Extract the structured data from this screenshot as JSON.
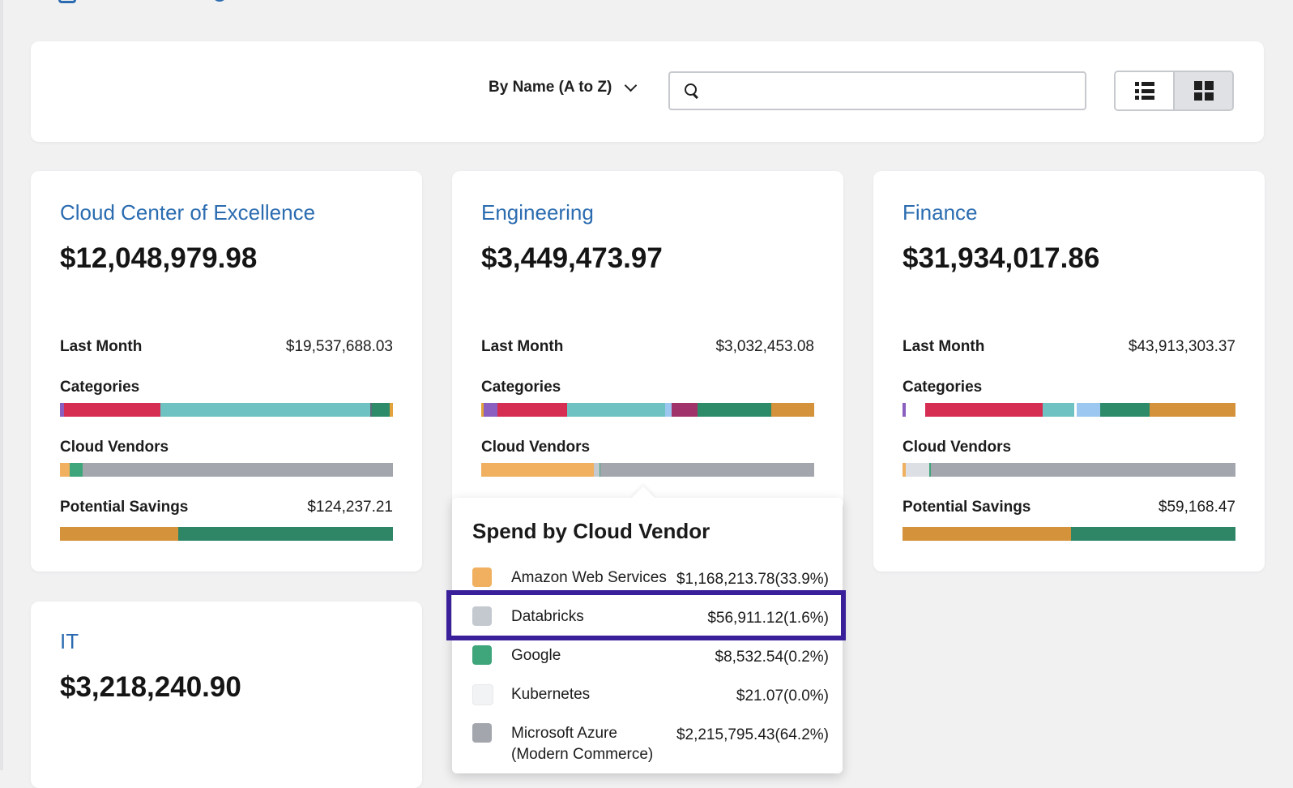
{
  "toolbar": {
    "sort_label": "By Name (A to Z)",
    "search_placeholder": "",
    "view_list_icon": "list-view-icon",
    "view_grid_icon": "grid-view-icon"
  },
  "colors": {
    "title_blue": "#2b6cb0",
    "highlight": "#3a1f9a"
  },
  "cards": [
    {
      "title": "Cloud Center of Excellence",
      "total": "$12,048,979.98",
      "last_month_label": "Last Month",
      "last_month_value": "$19,537,688.03",
      "categories_label": "Categories",
      "categories_bar": [
        {
          "color": "#8b5fbf",
          "share": 0.012
        },
        {
          "color": "#d62d53",
          "share": 0.29
        },
        {
          "color": "#6fc2c2",
          "share": 0.63
        },
        {
          "color": "#5a6b7a",
          "share": 0.004
        },
        {
          "color": "#2e8b6a",
          "share": 0.055
        },
        {
          "color": "#e3a23b",
          "share": 0.009
        }
      ],
      "vendors_label": "Cloud Vendors",
      "vendors_bar": [
        {
          "color": "#f0b060",
          "share": 0.03
        },
        {
          "color": "#3fa57a",
          "share": 0.037
        },
        {
          "color": "#a3a7ad",
          "share": 0.933
        }
      ],
      "savings_label": "Potential Savings",
      "savings_value": "$124,237.21",
      "savings_bar": [
        {
          "color": "#d4923a",
          "share": 0.355
        },
        {
          "color": "#2f8667",
          "share": 0.645
        }
      ]
    },
    {
      "title": "Engineering",
      "total": "$3,449,473.97",
      "last_month_label": "Last Month",
      "last_month_value": "$3,032,453.08",
      "categories_label": "Categories",
      "categories_bar": [
        {
          "color": "#e3a23b",
          "share": 0.008
        },
        {
          "color": "#8b5fbf",
          "share": 0.04
        },
        {
          "color": "#d62d53",
          "share": 0.21
        },
        {
          "color": "#6fc2c2",
          "share": 0.295
        },
        {
          "color": "#9cc7f0",
          "share": 0.02
        },
        {
          "color": "#a0346a",
          "share": 0.077
        },
        {
          "color": "#2e8b6a",
          "share": 0.22
        },
        {
          "color": "#d4923a",
          "share": 0.13
        }
      ],
      "vendors_label": "Cloud Vendors",
      "vendors_bar": [
        {
          "color": "#f0b060",
          "share": 0.339
        },
        {
          "color": "#c4c8cf",
          "share": 0.016
        },
        {
          "color": "#3fa57a",
          "share": 0.002
        },
        {
          "color": "#f2f3f5",
          "share": 0.001
        },
        {
          "color": "#a3a7ad",
          "share": 0.642
        }
      ]
    },
    {
      "title": "Finance",
      "total": "$31,934,017.86",
      "last_month_label": "Last Month",
      "last_month_value": "$43,913,303.37",
      "categories_label": "Categories",
      "categories_bar": [
        {
          "color": "#8b5fbf",
          "share": 0.01
        },
        {
          "color": "#ffffff",
          "share": 0.058
        },
        {
          "color": "#d62d53",
          "share": 0.352
        },
        {
          "color": "#6fc2c2",
          "share": 0.095
        },
        {
          "color": "#ffffff",
          "share": 0.008
        },
        {
          "color": "#9cc7f0",
          "share": 0.07
        },
        {
          "color": "#2e8b6a",
          "share": 0.15
        },
        {
          "color": "#d4923a",
          "share": 0.257
        }
      ],
      "vendors_label": "Cloud Vendors",
      "vendors_bar": [
        {
          "color": "#f0b060",
          "share": 0.01
        },
        {
          "color": "#dcdfe3",
          "share": 0.07
        },
        {
          "color": "#3fa57a",
          "share": 0.006
        },
        {
          "color": "#a3a7ad",
          "share": 0.914
        }
      ],
      "savings_label": "Potential Savings",
      "savings_value": "$59,168.47",
      "savings_bar": [
        {
          "color": "#d4923a",
          "share": 0.505
        },
        {
          "color": "#2f8667",
          "share": 0.495
        }
      ]
    },
    {
      "title": "IT",
      "total": "$3,218,240.90"
    }
  ],
  "tooltip": {
    "title": "Spend by Cloud Vendor",
    "items": [
      {
        "name": "Amazon Web Services",
        "value": "$1,168,213.78(33.9%)",
        "color": "#f0b060",
        "icon": "aws-swatch"
      },
      {
        "name": "Databricks",
        "value": "$56,911.12(1.6%)",
        "color": "#c4c8cf",
        "icon": "databricks-swatch"
      },
      {
        "name": "Google",
        "value": "$8,532.54(0.2%)",
        "color": "#3fa57a",
        "icon": "google-swatch"
      },
      {
        "name": "Kubernetes",
        "value": "$21.07(0.0%)",
        "color": "#f2f3f5",
        "icon": "kubernetes-swatch"
      },
      {
        "name": "Microsoft Azure (Modern Commerce)",
        "value": "$2,215,795.43(64.2%)",
        "color": "#a3a7ad",
        "icon": "azure-swatch"
      }
    ]
  }
}
